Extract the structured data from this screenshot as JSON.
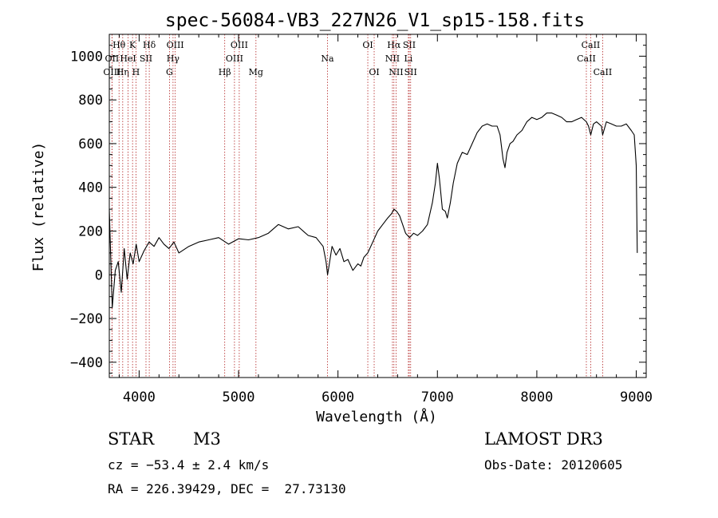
{
  "chart_data": {
    "type": "line",
    "title": "spec-56084-VB3_227N26_V1_sp15-158.fits",
    "xlabel": "Wavelength (Å)",
    "ylabel": "Flux (relative)",
    "xlim": [
      3700,
      9100
    ],
    "ylim": [
      -470,
      1100
    ],
    "x_ticks": [
      4000,
      5000,
      6000,
      7000,
      8000,
      9000
    ],
    "x_tick_labels": [
      "4000",
      "5000",
      "6000",
      "7000",
      "8000",
      "9000"
    ],
    "y_ticks": [
      -400,
      -200,
      0,
      200,
      400,
      600,
      800,
      1000
    ],
    "y_tick_labels": [
      "−400",
      "−200",
      "0",
      "200",
      "400",
      "600",
      "800",
      "1000"
    ],
    "grid": false,
    "line_color": "#000000",
    "marker_color": "#b22222",
    "series": [
      {
        "name": "spectrum",
        "x": [
          3700,
          3730,
          3760,
          3790,
          3820,
          3850,
          3880,
          3910,
          3940,
          3970,
          4000,
          4050,
          4100,
          4150,
          4200,
          4250,
          4300,
          4350,
          4400,
          4500,
          4600,
          4700,
          4800,
          4900,
          5000,
          5100,
          5200,
          5300,
          5400,
          5500,
          5600,
          5700,
          5780,
          5850,
          5880,
          5895,
          5910,
          5940,
          5980,
          6020,
          6060,
          6100,
          6150,
          6200,
          6230,
          6260,
          6300,
          6350,
          6400,
          6450,
          6500,
          6540,
          6563,
          6590,
          6620,
          6650,
          6680,
          6720,
          6760,
          6800,
          6850,
          6900,
          6950,
          6980,
          7000,
          7020,
          7050,
          7080,
          7100,
          7130,
          7160,
          7200,
          7250,
          7300,
          7350,
          7400,
          7450,
          7500,
          7550,
          7600,
          7630,
          7660,
          7680,
          7700,
          7730,
          7760,
          7800,
          7850,
          7900,
          7950,
          8000,
          8050,
          8100,
          8150,
          8200,
          8250,
          8300,
          8350,
          8400,
          8450,
          8498,
          8520,
          8542,
          8570,
          8600,
          8650,
          8662,
          8700,
          8750,
          8800,
          8850,
          8900,
          8950,
          8980,
          9000,
          9010
        ],
        "values": [
          300,
          -150,
          20,
          60,
          -80,
          120,
          -20,
          100,
          50,
          140,
          60,
          110,
          150,
          130,
          170,
          140,
          120,
          150,
          100,
          130,
          150,
          160,
          170,
          140,
          165,
          160,
          170,
          190,
          230,
          210,
          220,
          180,
          170,
          130,
          60,
          0,
          40,
          130,
          90,
          120,
          60,
          70,
          20,
          50,
          40,
          80,
          100,
          150,
          200,
          230,
          260,
          280,
          300,
          290,
          270,
          230,
          190,
          170,
          190,
          180,
          200,
          230,
          330,
          420,
          510,
          440,
          300,
          290,
          260,
          330,
          420,
          510,
          560,
          550,
          600,
          650,
          680,
          690,
          680,
          680,
          640,
          530,
          490,
          560,
          600,
          610,
          640,
          660,
          700,
          720,
          710,
          720,
          740,
          740,
          730,
          720,
          700,
          700,
          710,
          720,
          700,
          680,
          640,
          690,
          700,
          680,
          640,
          700,
          690,
          680,
          680,
          690,
          660,
          640,
          500,
          100
        ]
      }
    ],
    "lines": [
      {
        "label": "Hθ",
        "x": 3798,
        "row": 1
      },
      {
        "label": "OII",
        "x": 3727,
        "row": 2
      },
      {
        "label": "OIII",
        "x": 3727,
        "row": 3
      },
      {
        "label": "Hη",
        "x": 3835,
        "row": 3
      },
      {
        "label": "HeI",
        "x": 3889,
        "row": 2
      },
      {
        "label": "K",
        "x": 3934,
        "row": 1
      },
      {
        "label": "H",
        "x": 3968,
        "row": 3
      },
      {
        "label": "SII",
        "x": 4069,
        "row": 2
      },
      {
        "label": "Hδ",
        "x": 4102,
        "row": 1
      },
      {
        "label": "OIII",
        "x": 4363,
        "row": 1
      },
      {
        "label": "Hγ",
        "x": 4341,
        "row": 2
      },
      {
        "label": "G",
        "x": 4305,
        "row": 3
      },
      {
        "label": "Hβ",
        "x": 4861,
        "row": 3
      },
      {
        "label": "OIII",
        "x": 5007,
        "row": 1
      },
      {
        "label": "OIII",
        "x": 4959,
        "row": 2
      },
      {
        "label": "Mg",
        "x": 5175,
        "row": 3
      },
      {
        "label": "Na",
        "x": 5894,
        "row": 2
      },
      {
        "label": "OI",
        "x": 6300,
        "row": 1
      },
      {
        "label": "OI",
        "x": 6364,
        "row": 3
      },
      {
        "label": "Hα",
        "x": 6563,
        "row": 1
      },
      {
        "label": "NII",
        "x": 6548,
        "row": 2
      },
      {
        "label": "NII",
        "x": 6584,
        "row": 3
      },
      {
        "label": "SII",
        "x": 6717,
        "row": 1
      },
      {
        "label": "Li",
        "x": 6708,
        "row": 2
      },
      {
        "label": "SII",
        "x": 6731,
        "row": 3
      },
      {
        "label": "CaII",
        "x": 8542,
        "row": 1
      },
      {
        "label": "CaII",
        "x": 8498,
        "row": 2
      },
      {
        "label": "CaII",
        "x": 8662,
        "row": 3
      }
    ]
  },
  "footer": {
    "object_class": "STAR",
    "subclass": "M3",
    "survey": "LAMOST DR3",
    "redshift": "cz = −53.4 ± 2.4 km/s",
    "obs_date": "Obs-Date: 20120605",
    "coords": "RA = 226.39429, DEC =  27.73130"
  }
}
